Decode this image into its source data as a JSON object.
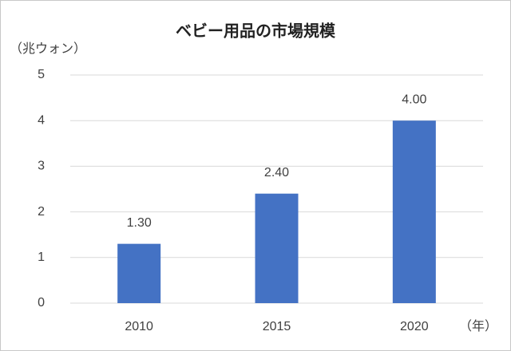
{
  "chart_data": {
    "type": "bar",
    "title": "ベビー用品の市場規模",
    "y_axis_label": "（兆ウォン）",
    "x_axis_label": "（年）",
    "categories": [
      "2010",
      "2015",
      "2020"
    ],
    "values": [
      1.3,
      2.4,
      4.0
    ],
    "value_labels": [
      "1.30",
      "2.40",
      "4.00"
    ],
    "color": "#4472c4",
    "ylim": [
      0,
      5
    ],
    "yticks": [
      0,
      1,
      2,
      3,
      4,
      5
    ],
    "grid": true
  }
}
